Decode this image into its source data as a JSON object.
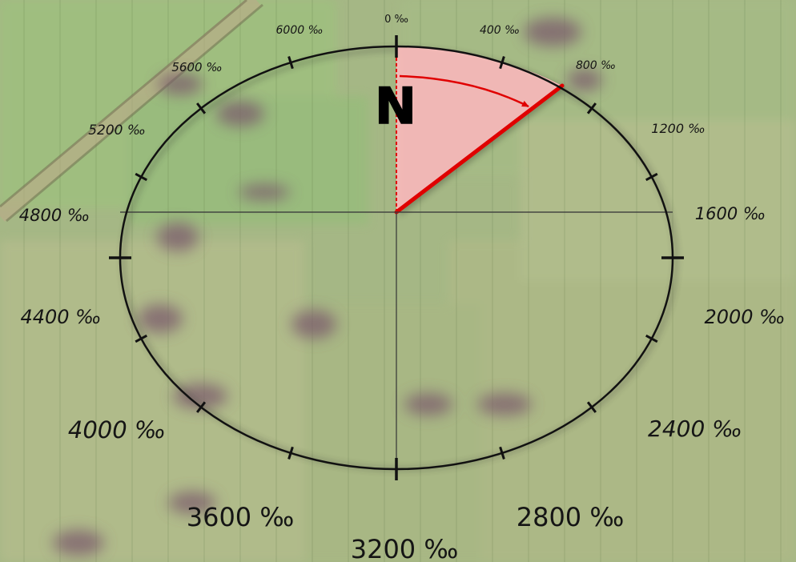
{
  "compass": {
    "north_label": "N",
    "labels": [
      "0 ‰",
      "400 ‰",
      "800 ‰",
      "1200 ‰",
      "1600 ‰",
      "2000 ‰",
      "2400 ‰",
      "2800 ‰",
      "3200 ‰",
      "3600 ‰",
      "4000 ‰",
      "4400 ‰",
      "4800 ‰",
      "5200 ‰",
      "5600 ‰",
      "6000 ‰"
    ],
    "label_values_mils": [
      0,
      400,
      800,
      1200,
      1600,
      2000,
      2400,
      2800,
      3200,
      3600,
      4000,
      4400,
      4800,
      5200,
      5600,
      6000
    ],
    "full_circle_mils": 6400,
    "highlighted_bearing_mils": 800,
    "colors": {
      "sector_fill": "#f7b9b9",
      "sector_edge": "#e00000",
      "ring": "#111111",
      "label": "#111111"
    }
  }
}
